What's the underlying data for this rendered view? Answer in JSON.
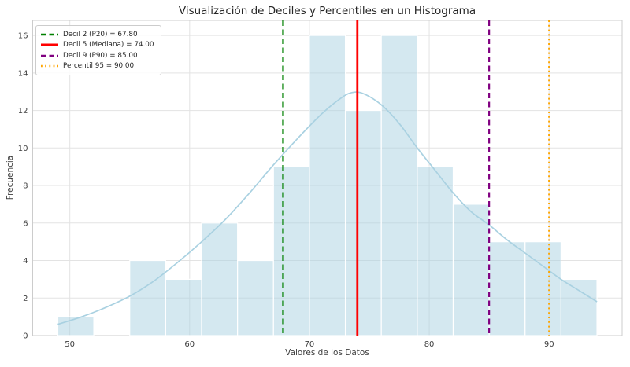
{
  "chart_data": {
    "type": "bar",
    "subtype": "histogram-with-kde",
    "title": "Visualización de Deciles y Percentiles en un Histograma",
    "xlabel": "Valores de los Datos",
    "ylabel": "Frecuencia",
    "xlim": [
      46.9,
      96.1
    ],
    "ylim": [
      0,
      16.8
    ],
    "x_ticks": [
      50,
      60,
      70,
      80,
      90
    ],
    "y_ticks": [
      0,
      2,
      4,
      6,
      8,
      10,
      12,
      14,
      16
    ],
    "grid": true,
    "legend_position": "upper left",
    "bins": {
      "start": 49,
      "width": 3,
      "edges": [
        49,
        52,
        55,
        58,
        61,
        64,
        67,
        70,
        73,
        76,
        79,
        82,
        85,
        88,
        91,
        94
      ],
      "counts": [
        1,
        0,
        4,
        3,
        6,
        4,
        9,
        16,
        12,
        16,
        9,
        7,
        5,
        5,
        3
      ]
    },
    "kde_curve": [
      [
        49,
        0.6
      ],
      [
        51,
        1.0
      ],
      [
        53,
        1.5
      ],
      [
        55,
        2.1
      ],
      [
        57,
        2.9
      ],
      [
        59,
        3.9
      ],
      [
        61,
        5.0
      ],
      [
        63,
        6.2
      ],
      [
        65,
        7.6
      ],
      [
        67,
        9.1
      ],
      [
        69,
        10.5
      ],
      [
        71,
        11.8
      ],
      [
        72.5,
        12.6
      ],
      [
        73.5,
        12.95
      ],
      [
        74.5,
        12.9
      ],
      [
        76,
        12.3
      ],
      [
        77.5,
        11.3
      ],
      [
        79,
        10.0
      ],
      [
        80.5,
        8.8
      ],
      [
        82,
        7.6
      ],
      [
        83.5,
        6.6
      ],
      [
        85,
        5.9
      ],
      [
        86.5,
        5.1
      ],
      [
        88,
        4.4
      ],
      [
        89.5,
        3.7
      ],
      [
        91,
        3.0
      ],
      [
        92.5,
        2.4
      ],
      [
        94,
        1.8
      ]
    ],
    "reference_lines": [
      {
        "name": "decil-2-p20-line",
        "label": "Decil 2 (P20) = 67.80",
        "x": 67.8,
        "color": "#008000",
        "style": "dashed"
      },
      {
        "name": "decil-5-mediana-line",
        "label": "Decil 5 (Mediana) = 74.00",
        "x": 74.0,
        "color": "#ff0000",
        "style": "solid"
      },
      {
        "name": "decil-9-p90-line",
        "label": "Decil 9 (P90) = 85.00",
        "x": 85.0,
        "color": "#800080",
        "style": "dashed"
      },
      {
        "name": "percentil-95-line",
        "label": "Percentil 95 = 90.00",
        "x": 90.0,
        "color": "#ffa500",
        "style": "dotted"
      }
    ],
    "colors": {
      "bar_fill": "#a9d1e1",
      "bar_fill_opacity": 0.5,
      "bar_edge": "#ffffff",
      "kde_line": "#a9d1e1",
      "grid": "#e3e3e3",
      "spine": "#cccccc",
      "title_text": "#262626",
      "tick_text": "#3d3d3d"
    }
  }
}
